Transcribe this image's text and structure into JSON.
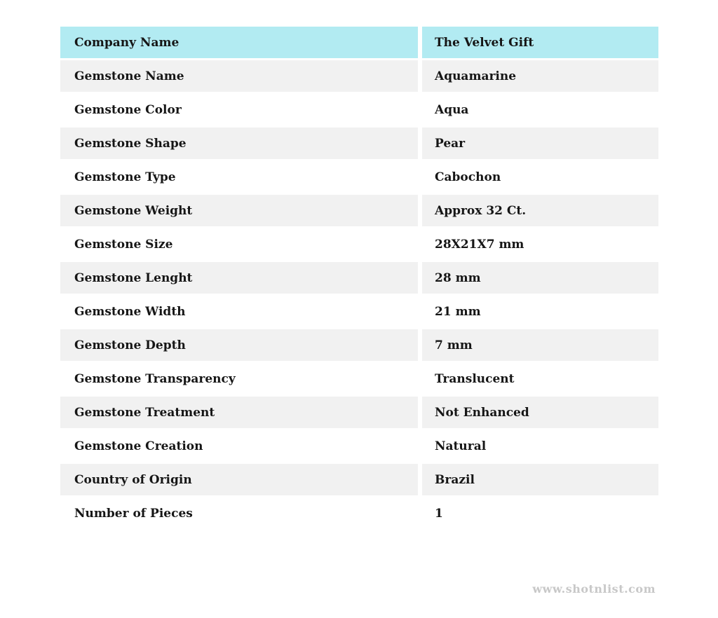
{
  "table": {
    "header": {
      "label": "Company Name",
      "value": "The Velvet Gift",
      "header_bg": "#b2ebf2"
    },
    "rows": [
      {
        "label": "Gemstone Name",
        "value": "Aquamarine"
      },
      {
        "label": "Gemstone Color",
        "value": "Aqua"
      },
      {
        "label": "Gemstone Shape",
        "value": "Pear"
      },
      {
        "label": "Gemstone Type",
        "value": "Cabochon"
      },
      {
        "label": "Gemstone Weight",
        "value": "Approx 32 Ct."
      },
      {
        "label": "Gemstone Size",
        "value": "28X21X7 mm"
      },
      {
        "label": "Gemstone Lenght",
        "value": "28 mm"
      },
      {
        "label": "Gemstone Width",
        "value": "21 mm"
      },
      {
        "label": "Gemstone Depth",
        "value": "7 mm"
      },
      {
        "label": "Gemstone Transparency",
        "value": "Translucent"
      },
      {
        "label": "Gemstone Treatment",
        "value": "Not Enhanced"
      },
      {
        "label": "Gemstone Creation",
        "value": "Natural"
      },
      {
        "label": "Country of Origin",
        "value": "Brazil"
      },
      {
        "label": "Number of Pieces",
        "value": "1"
      }
    ],
    "stripe_color": "#f1f1f1"
  },
  "footer": {
    "website": "www.shotnlist.com",
    "text_color": "#c8c8c8"
  }
}
